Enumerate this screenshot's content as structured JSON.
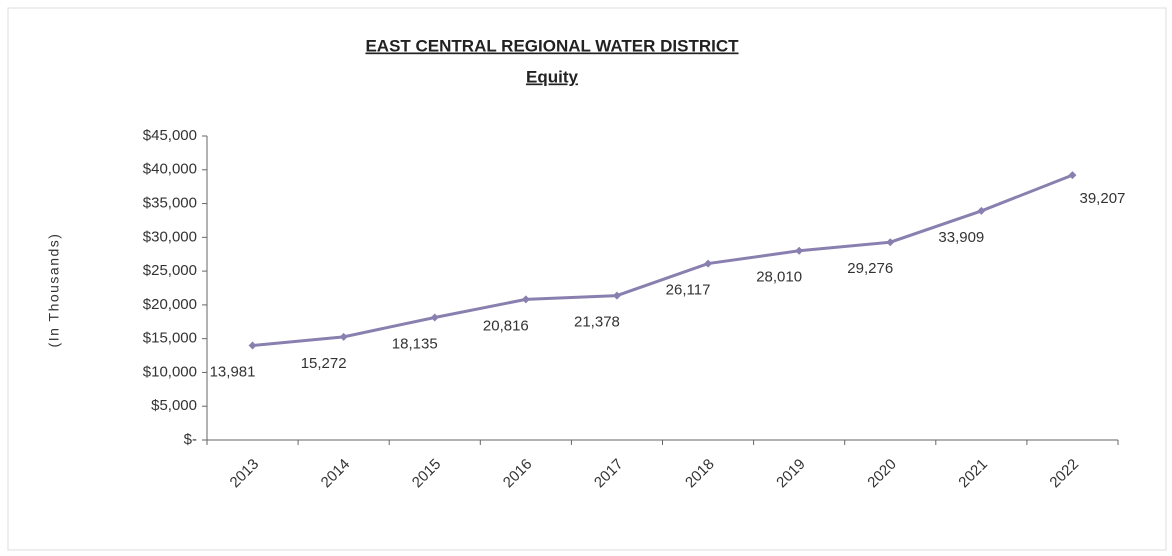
{
  "chart_data": {
    "type": "line",
    "title": "EAST CENTRAL  REGIONAL WATER DISTRICT",
    "subtitle": "Equity",
    "y_label": "(In Thousands)",
    "categories": [
      "2013",
      "2014",
      "2015",
      "2016",
      "2017",
      "2018",
      "2019",
      "2020",
      "2021",
      "2022"
    ],
    "series": [
      {
        "name": "Equity",
        "color": "#8a80b0",
        "values": [
          13981,
          15272,
          18135,
          20816,
          21378,
          26117,
          28010,
          29276,
          33909,
          39207
        ],
        "value_labels": [
          "13,981",
          "15,272",
          "18,135",
          "20,816",
          "21,378",
          "26,117",
          "28,010",
          "29,276",
          "33,909",
          "39,207"
        ]
      }
    ],
    "ylim": [
      0,
      45000
    ],
    "yticks": [
      {
        "value": 0,
        "label": "$-"
      },
      {
        "value": 5000,
        "label": "$5,000"
      },
      {
        "value": 10000,
        "label": "$10,000"
      },
      {
        "value": 15000,
        "label": "$15,000"
      },
      {
        "value": 20000,
        "label": "$20,000"
      },
      {
        "value": 25000,
        "label": "$25,000"
      },
      {
        "value": 30000,
        "label": "$30,000"
      },
      {
        "value": 35000,
        "label": "$35,000"
      },
      {
        "value": 40000,
        "label": "$40,000"
      },
      {
        "value": 45000,
        "label": "$45,000"
      }
    ],
    "grid": false
  }
}
